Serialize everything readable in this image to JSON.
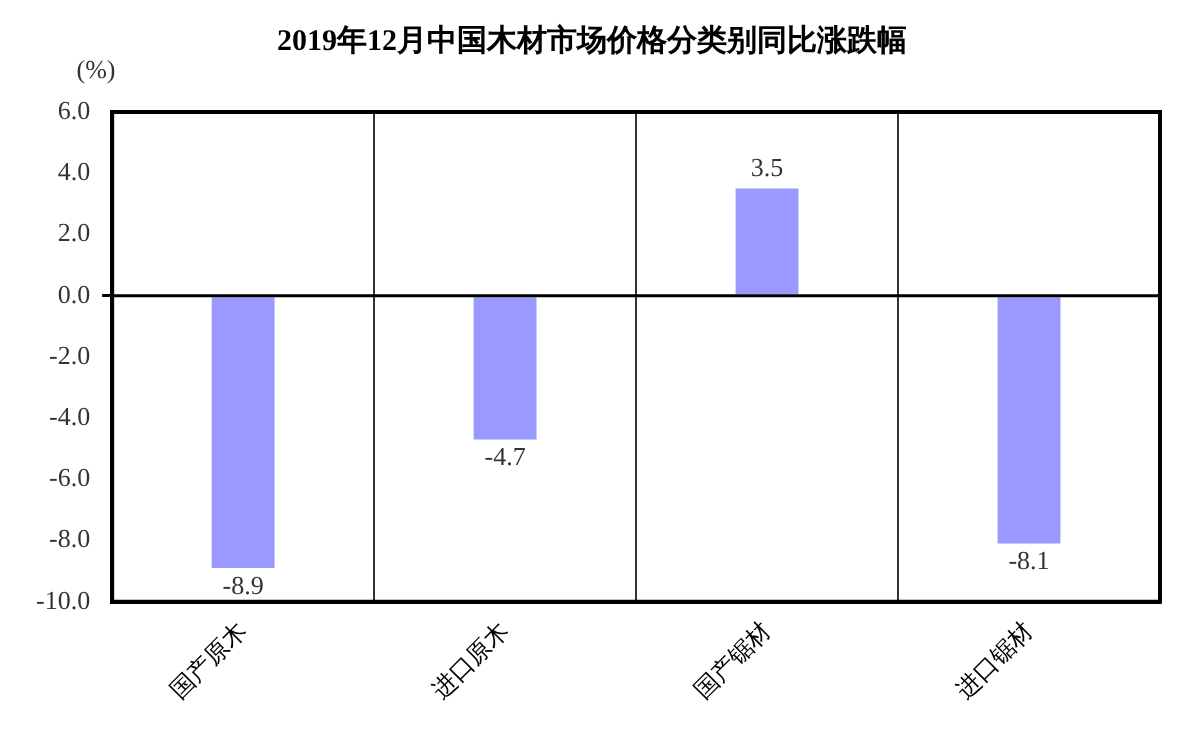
{
  "chart_data": {
    "type": "bar",
    "title": "2019年12月中国木材市场价格分类别同比涨跌幅",
    "ylabel": "(%)",
    "categories": [
      "国产原木",
      "进口原木",
      "国产锯材",
      "进口锯材"
    ],
    "values": [
      -8.9,
      -4.7,
      3.5,
      -8.1
    ],
    "color": "#9999ff",
    "ylim": [
      -10,
      6
    ],
    "yticks": [
      {
        "value": -10,
        "label": "-10.0"
      },
      {
        "value": -8,
        "label": "-8.0"
      },
      {
        "value": -6,
        "label": "-6.0"
      },
      {
        "value": -4,
        "label": "-4.0"
      },
      {
        "value": -2,
        "label": "-2.0"
      },
      {
        "value": 0,
        "label": "0.0"
      },
      {
        "value": 2,
        "label": "2.0"
      },
      {
        "value": 4,
        "label": "4.0"
      },
      {
        "value": 6,
        "label": "6.0"
      }
    ],
    "grid": "x",
    "data_labels": true
  }
}
